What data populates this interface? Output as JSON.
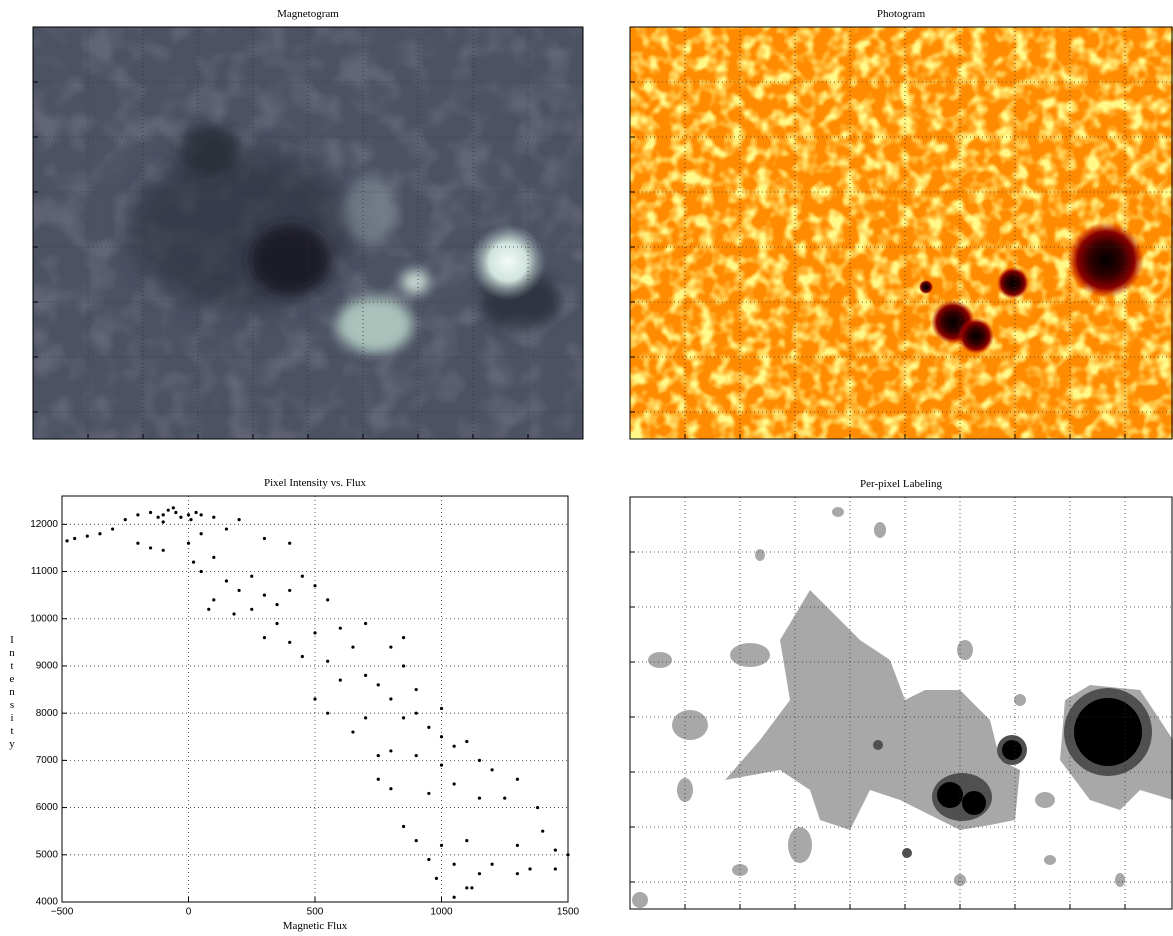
{
  "chart_data": [
    {
      "type": "image",
      "title": "Magnetogram"
    },
    {
      "type": "image",
      "title": "Photogram"
    },
    {
      "type": "scatter",
      "title": "Pixel Intensity vs. Flux",
      "x_label": "Magnetic Flux",
      "y_label": "Intensity",
      "color": "#000000",
      "grid": true,
      "xlim": [
        -500,
        1500
      ],
      "xticks": [
        {
          "value": -500,
          "label": "−500"
        },
        0,
        500,
        1000,
        1500
      ],
      "ylim": [
        4000,
        12600
      ],
      "yticks": [
        4000,
        5000,
        6000,
        7000,
        8000,
        9000,
        10000,
        11000,
        12000
      ],
      "x": [
        -400,
        -450,
        -300,
        -250,
        -200,
        -150,
        -100,
        -50,
        0,
        50,
        100,
        -100,
        -350,
        -480,
        -150,
        -100,
        -200,
        300,
        400,
        200,
        150,
        50,
        0,
        20,
        50,
        100,
        150,
        200,
        250,
        300,
        100,
        80,
        180,
        250,
        350,
        400,
        450,
        500,
        550,
        350,
        300,
        400,
        500,
        600,
        450,
        550,
        650,
        700,
        800,
        850,
        600,
        700,
        750,
        850,
        900,
        800,
        500,
        550,
        650,
        700,
        800,
        850,
        950,
        900,
        1000,
        1000,
        1050,
        900,
        750,
        750,
        800,
        1000,
        1100,
        1150,
        1200,
        950,
        1050,
        1150,
        1250,
        1300,
        850,
        900,
        950,
        1000,
        1100,
        1050,
        1100,
        1150,
        1200,
        1300,
        1350,
        1400,
        1450,
        1500,
        1300,
        980,
        1050,
        1120,
        1450,
        1380,
        -80,
        -30,
        30,
        -60,
        -120,
        10
      ],
      "values": [
        11750,
        11700,
        11900,
        12100,
        12200,
        12250,
        12200,
        12250,
        12200,
        12200,
        12150,
        12050,
        11800,
        11650,
        11500,
        11450,
        11600,
        11700,
        11600,
        12100,
        11900,
        11800,
        11600,
        11200,
        11000,
        11300,
        10800,
        10600,
        10900,
        10500,
        10400,
        10200,
        10100,
        10200,
        10300,
        10600,
        10900,
        10700,
        10400,
        9900,
        9600,
        9500,
        9700,
        9800,
        9200,
        9100,
        9400,
        9900,
        9400,
        9600,
        8700,
        8800,
        8600,
        9000,
        8500,
        8300,
        8300,
        8000,
        7600,
        7900,
        7200,
        7900,
        7700,
        8000,
        8100,
        7500,
        7300,
        7100,
        7100,
        6600,
        6400,
        6900,
        7400,
        7000,
        6800,
        6300,
        6500,
        6200,
        6200,
        6600,
        5600,
        5300,
        4900,
        5200,
        5300,
        4800,
        4300,
        4600,
        4800,
        5200,
        4700,
        5500,
        5100,
        5000,
        4600,
        4500,
        4100,
        4300,
        4700,
        6000,
        12300,
        12150,
        12250,
        12350,
        12150,
        12100
      ]
    },
    {
      "type": "image",
      "title": "Per-pixel Labeling"
    }
  ]
}
